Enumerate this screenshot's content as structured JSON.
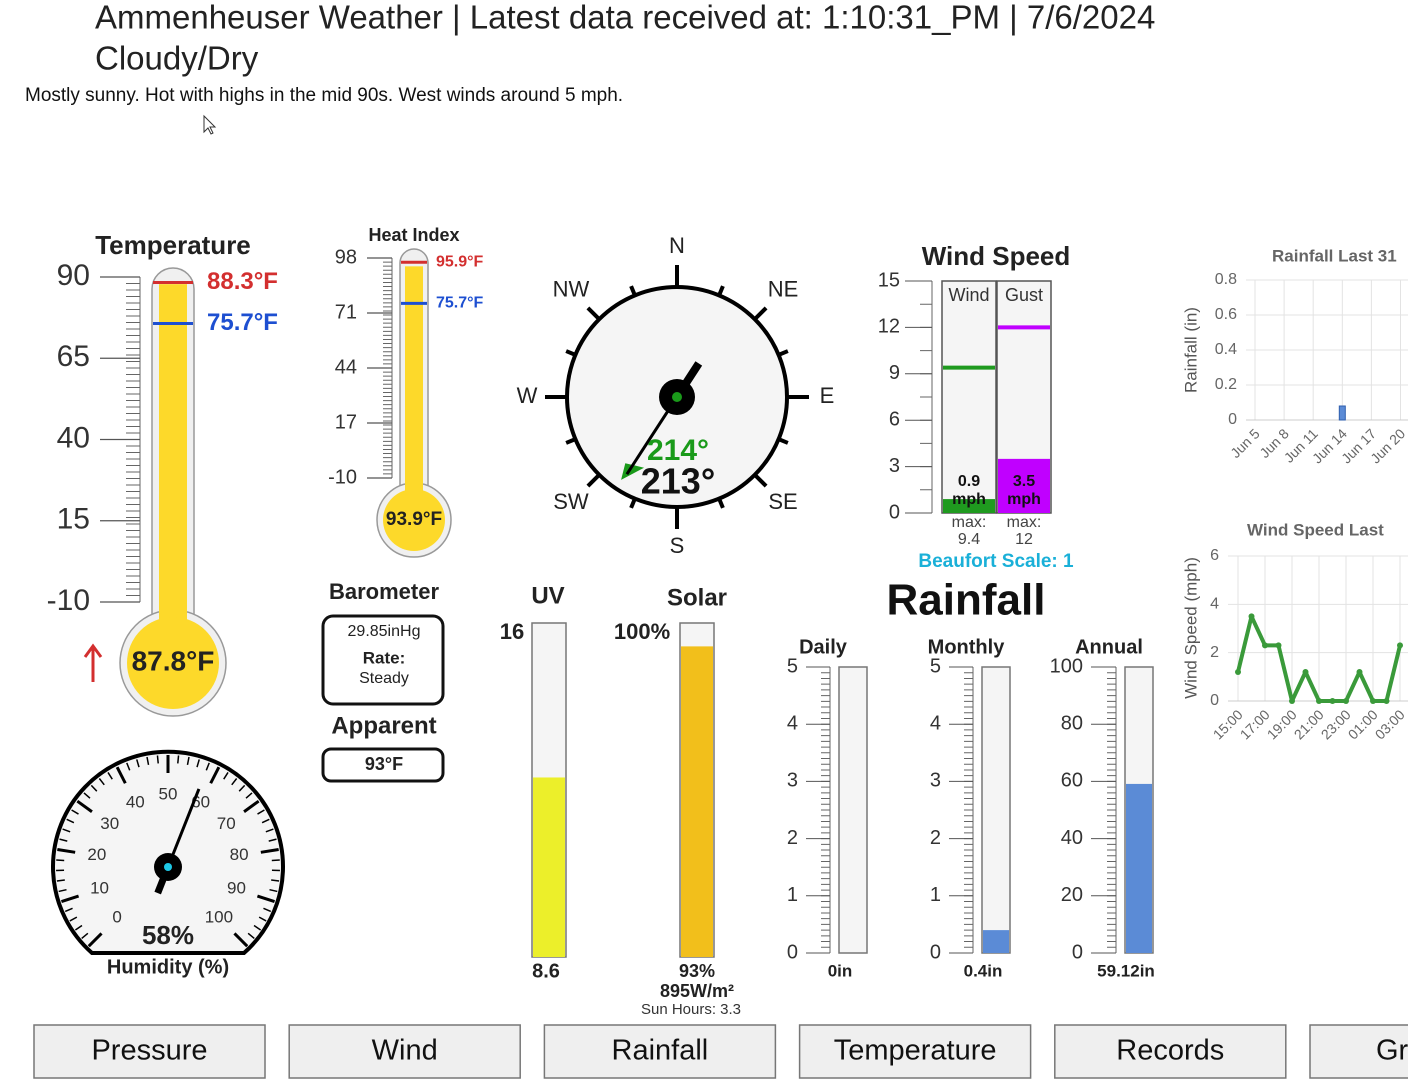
{
  "header": {
    "title": "Ammenheuser Weather | Latest data received at: 1:10:31_PM | 7/6/2024",
    "condition": "Cloudy/Dry",
    "forecast": "Mostly sunny. Hot with highs in the mid 90s. West winds around 5 mph."
  },
  "temperature": {
    "title": "Temperature",
    "range": [
      -10,
      90
    ],
    "ticks": [
      90,
      65,
      40,
      15,
      -10
    ],
    "current": 87.8,
    "current_label": "87.8°F",
    "high": 88.3,
    "high_label": "88.3°F",
    "low": 75.7,
    "low_label": "75.7°F"
  },
  "heat_index": {
    "title": "Heat Index",
    "range": [
      -10,
      98
    ],
    "ticks": [
      98,
      71,
      44,
      17,
      -10
    ],
    "current": 93.9,
    "current_label": "93.9°F",
    "high": 95.9,
    "high_label": "95.9°F",
    "low": 75.7,
    "low_label": "75.7°F"
  },
  "wind_direction": {
    "cardinals": [
      "N",
      "NE",
      "E",
      "SE",
      "S",
      "SW",
      "W",
      "NW"
    ],
    "average": 214,
    "average_label": "214°",
    "current": 213,
    "current_label": "213°"
  },
  "wind_speed": {
    "title": "Wind Speed",
    "range": [
      0,
      15
    ],
    "ticks": [
      0,
      3,
      6,
      9,
      12,
      15
    ],
    "wind_label": "Wind",
    "gust_label": "Gust",
    "wind": 0.9,
    "wind_text": "0.9 mph",
    "gust": 3.5,
    "gust_text": "3.5 mph",
    "wind_max_label": "max:",
    "wind_max": 9.4,
    "gust_max_label": "max:",
    "gust_max": 12,
    "beaufort": "Beaufort Scale: 1"
  },
  "humidity": {
    "title": "Humidity (%)",
    "range": [
      0,
      100
    ],
    "ticks": [
      0,
      10,
      20,
      30,
      40,
      50,
      60,
      70,
      80,
      90,
      100
    ],
    "current": 58,
    "current_label": "58%"
  },
  "barometer": {
    "title": "Barometer",
    "reading": "29.85inHg",
    "rate_label": "Rate:",
    "rate": "Steady"
  },
  "apparent": {
    "title": "Apparent",
    "value": "93°F"
  },
  "uv": {
    "title": "UV",
    "max": 16,
    "current": 8.6
  },
  "solar": {
    "title": "Solar",
    "max": 100,
    "max_label": "100%",
    "percent": 93,
    "percent_label": "93%",
    "irradiance": "895W/m²",
    "sun_hours": "Sun Hours: 3.3"
  },
  "rainfall": {
    "title": "Rainfall",
    "daily": {
      "title": "Daily",
      "range": [
        0,
        5
      ],
      "ticks": [
        0,
        1,
        2,
        3,
        4,
        5
      ],
      "value": 0,
      "value_label": "0in"
    },
    "monthly": {
      "title": "Monthly",
      "range": [
        0,
        5
      ],
      "ticks": [
        0,
        1,
        2,
        3,
        4,
        5
      ],
      "value": 0.4,
      "value_label": "0.4in"
    },
    "annual": {
      "title": "Annual",
      "range": [
        0,
        100
      ],
      "ticks": [
        0,
        20,
        40,
        60,
        80,
        100
      ],
      "value": 59.12,
      "value_label": "59.12in"
    }
  },
  "chart_data": [
    {
      "type": "bar",
      "title": "Rainfall Last 31",
      "y_label": "Rainfall (in)",
      "categories": [
        "Jun 5",
        null,
        null,
        "Jun 8",
        null,
        null,
        "Jun 11",
        null,
        null,
        "Jun 14",
        null,
        null,
        "Jun 17",
        null,
        null,
        "Jun 20"
      ],
      "values": [
        0,
        0,
        0,
        0,
        0,
        0,
        0,
        0,
        0,
        0.08,
        0,
        0,
        0,
        0,
        0,
        0
      ],
      "color": "#5b8bd6",
      "ylim": [
        0,
        0.8
      ],
      "yticks": [
        0,
        0.2,
        0.4,
        0.6,
        0.8
      ],
      "grid": true
    },
    {
      "type": "line",
      "title": "Wind Speed Last",
      "y_label": "Wind Speed (mph)",
      "categories": [
        "15:00",
        null,
        "17:00",
        null,
        "19:00",
        null,
        "21:00",
        null,
        "23:00",
        null,
        "01:00",
        null,
        "03:00"
      ],
      "values": [
        1.2,
        3.5,
        2.3,
        2.3,
        0,
        1.2,
        0,
        0,
        0,
        1.2,
        0,
        0,
        2.3
      ],
      "color": "#3a9a3a",
      "ylim": [
        0,
        6
      ],
      "yticks": [
        0,
        2,
        4,
        6
      ],
      "grid": true
    }
  ],
  "buttons": [
    "Pressure",
    "Wind",
    "Rainfall",
    "Temperature",
    "Records",
    "Gr"
  ]
}
